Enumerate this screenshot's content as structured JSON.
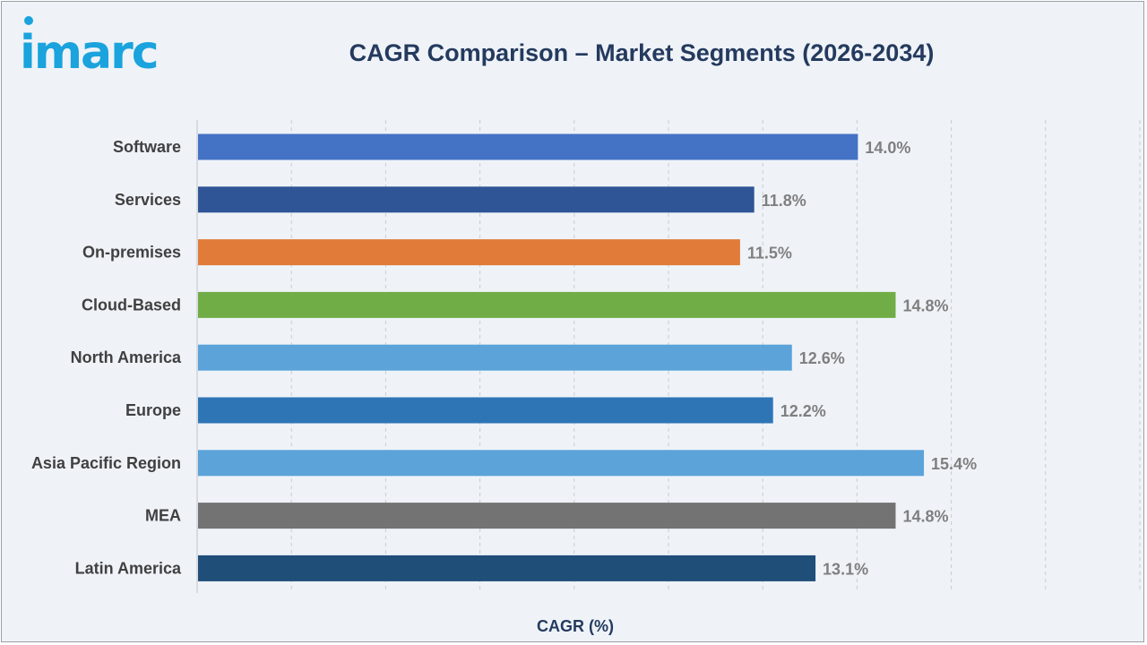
{
  "brand": {
    "logo_text": "imarc",
    "logo_color": "#1aa3dd"
  },
  "chart_data": {
    "type": "bar",
    "orientation": "horizontal",
    "title": "CAGR Comparison – Market Segments (2026-2034)",
    "xlabel": "CAGR (%)",
    "ylabel": "",
    "xlim": [
      0,
      20
    ],
    "grid": true,
    "categories": [
      "Software",
      "Services",
      "On-premises",
      "Cloud-Based",
      "North America",
      "Europe",
      "Asia Pacific Region",
      "MEA",
      "Latin America"
    ],
    "values": [
      14.0,
      11.8,
      11.5,
      14.8,
      12.6,
      12.2,
      15.4,
      14.8,
      13.1
    ],
    "value_labels": [
      "14.0%",
      "11.8%",
      "11.5%",
      "14.8%",
      "12.6%",
      "12.2%",
      "15.4%",
      "14.8%",
      "13.1%"
    ],
    "colors": [
      "#4472c4",
      "#2f5597",
      "#e07b39",
      "#70ad47",
      "#5ba3d9",
      "#2e75b6",
      "#5ba3d9",
      "#737373",
      "#1f4e79"
    ]
  }
}
